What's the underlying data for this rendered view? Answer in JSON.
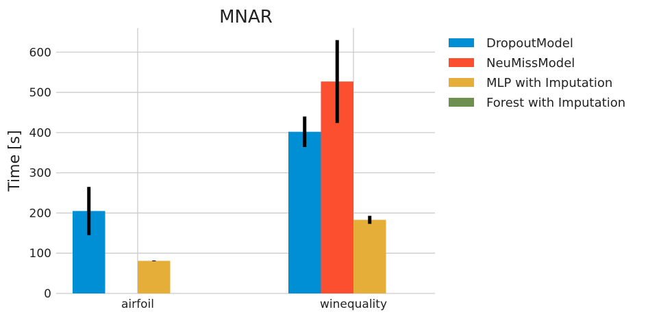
{
  "chart_data": {
    "type": "bar",
    "title": "MNAR",
    "ylabel": "Time [s]",
    "xlabel": "",
    "ylim": [
      0,
      660
    ],
    "yticks": [
      0,
      100,
      200,
      300,
      400,
      500,
      600
    ],
    "grid": true,
    "legend_position": "outside-top-right",
    "categories": [
      "airfoil",
      "winequality"
    ],
    "series": [
      {
        "name": "DropoutModel",
        "color": "#008fd5",
        "values": [
          205,
          402
        ],
        "errors": [
          60,
          38
        ]
      },
      {
        "name": "NeuMissModel",
        "color": "#fc4f30",
        "values": [
          null,
          527
        ],
        "errors": [
          null,
          103
        ]
      },
      {
        "name": "MLP with Imputation",
        "color": "#e5ae38",
        "values": [
          81,
          183
        ],
        "errors": [
          1,
          10
        ]
      },
      {
        "name": "Forest with Imputation",
        "color": "#6d904f",
        "values": [
          null,
          null
        ],
        "errors": [
          null,
          null
        ]
      }
    ]
  }
}
